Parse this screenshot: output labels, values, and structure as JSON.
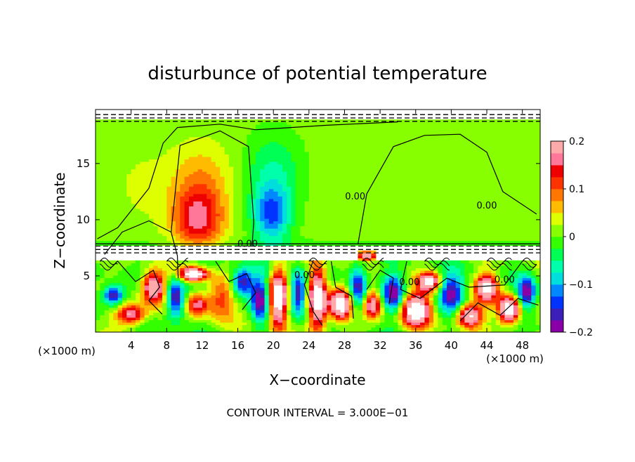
{
  "chart_data": {
    "type": "heatmap",
    "title": "disturbunce of potential temperature",
    "xlabel": "X−coordinate",
    "ylabel": "Z−coordinate",
    "x_unit": "(×1000 m)",
    "z_unit": "(×1000 m)",
    "xlim": [
      0,
      50
    ],
    "zlim": [
      0,
      19.8
    ],
    "x_ticks": [
      4,
      8,
      12,
      16,
      20,
      24,
      28,
      32,
      36,
      40,
      44,
      48
    ],
    "z_ticks": [
      5,
      10,
      15
    ],
    "colorbar": {
      "range": [
        -0.2,
        0.2
      ],
      "ticks": [
        -0.2,
        -0.1,
        0,
        0.1,
        0.2
      ],
      "tick_labels": [
        "−0.2",
        "−0.1",
        "0",
        "0.1",
        "0.2"
      ],
      "colors": [
        "#8a00a8",
        "#3b1fb8",
        "#0033ff",
        "#0088ff",
        "#00dddd",
        "#00ffaa",
        "#00ff55",
        "#33ff00",
        "#88ff00",
        "#ddff00",
        "#ffbb00",
        "#ff7700",
        "#ff3300",
        "#ee0000",
        "#ff7799",
        "#ffaaaa"
      ]
    },
    "contour_labels": [
      {
        "text": "0.00",
        "x": 17.1,
        "z": 7.6
      },
      {
        "text": "0.00",
        "x": 29.2,
        "z": 11.8
      },
      {
        "text": "0.00",
        "x": 44.0,
        "z": 11.0
      },
      {
        "text": "0.00",
        "x": 23.5,
        "z": 4.8
      },
      {
        "text": "0.00",
        "x": 35.3,
        "z": 4.2
      },
      {
        "text": "0.00",
        "x": 46.0,
        "z": 4.4
      }
    ],
    "contour_interval_label": "CONTOUR INTERVAL = 3.000E−01",
    "fields": {
      "upper_plumes": [
        {
          "x": 11.5,
          "z": 10.0,
          "amp": 0.14,
          "sx": 2.8,
          "sz": 2.6
        },
        {
          "x": 11.8,
          "z": 13.5,
          "amp": 0.06,
          "sx": 3.4,
          "sz": 3.2
        },
        {
          "x": 19.8,
          "z": 10.5,
          "amp": -0.14,
          "sx": 2.2,
          "sz": 2.6
        },
        {
          "x": 20.0,
          "z": 14.5,
          "amp": -0.06,
          "sx": 3.2,
          "sz": 3.4
        },
        {
          "x": 5.5,
          "z": 13.0,
          "amp": 0.02,
          "sx": 3.0,
          "sz": 3.0
        },
        {
          "x": 40.0,
          "z": 12.5,
          "amp": 0.012,
          "sx": 5.0,
          "sz": 3.0
        }
      ],
      "lower_blobs": [
        {
          "x": 2.0,
          "z": 3.3,
          "amp": -0.2,
          "sx": 1.2,
          "sz": 0.9
        },
        {
          "x": 4.0,
          "z": 1.6,
          "amp": 0.2,
          "sx": 1.6,
          "sz": 0.9
        },
        {
          "x": 6.5,
          "z": 4.0,
          "amp": 0.25,
          "sx": 1.3,
          "sz": 1.4
        },
        {
          "x": 9.0,
          "z": 3.0,
          "amp": -0.2,
          "sx": 1.0,
          "sz": 1.8
        },
        {
          "x": 11.0,
          "z": 5.2,
          "amp": 0.3,
          "sx": 1.5,
          "sz": 0.6
        },
        {
          "x": 11.5,
          "z": 2.5,
          "amp": 0.18,
          "sx": 1.2,
          "sz": 1.0
        },
        {
          "x": 14.0,
          "z": 3.0,
          "amp": 0.12,
          "sx": 1.5,
          "sz": 1.8
        },
        {
          "x": 16.5,
          "z": 4.5,
          "amp": -0.2,
          "sx": 1.2,
          "sz": 1.2
        },
        {
          "x": 18.5,
          "z": 3.0,
          "amp": -0.18,
          "sx": 1.0,
          "sz": 2.0
        },
        {
          "x": 20.5,
          "z": 3.0,
          "amp": 0.3,
          "sx": 1.0,
          "sz": 2.6
        },
        {
          "x": 22.8,
          "z": 3.5,
          "amp": -0.2,
          "sx": 0.9,
          "sz": 2.0
        },
        {
          "x": 25.0,
          "z": 3.0,
          "amp": 0.3,
          "sx": 1.0,
          "sz": 2.8
        },
        {
          "x": 27.5,
          "z": 2.5,
          "amp": 0.3,
          "sx": 1.2,
          "sz": 1.4
        },
        {
          "x": 29.5,
          "z": 4.0,
          "amp": -0.18,
          "sx": 1.0,
          "sz": 2.0
        },
        {
          "x": 31.2,
          "z": 2.5,
          "amp": 0.2,
          "sx": 1.0,
          "sz": 1.2
        },
        {
          "x": 33.5,
          "z": 3.5,
          "amp": -0.18,
          "sx": 1.2,
          "sz": 1.6
        },
        {
          "x": 36.0,
          "z": 2.0,
          "amp": 0.3,
          "sx": 1.6,
          "sz": 1.4
        },
        {
          "x": 37.5,
          "z": 4.5,
          "amp": 0.25,
          "sx": 1.2,
          "sz": 0.8
        },
        {
          "x": 40.0,
          "z": 3.5,
          "amp": -0.18,
          "sx": 1.4,
          "sz": 1.6
        },
        {
          "x": 42.0,
          "z": 1.5,
          "amp": 0.25,
          "sx": 1.4,
          "sz": 1.0
        },
        {
          "x": 44.0,
          "z": 4.0,
          "amp": 0.25,
          "sx": 1.2,
          "sz": 1.2
        },
        {
          "x": 46.5,
          "z": 2.0,
          "amp": 0.3,
          "sx": 1.2,
          "sz": 1.2
        },
        {
          "x": 48.5,
          "z": 3.5,
          "amp": -0.2,
          "sx": 1.0,
          "sz": 1.4
        },
        {
          "x": 30.5,
          "z": 6.8,
          "amp": 0.25,
          "sx": 1.0,
          "sz": 0.35
        }
      ]
    }
  }
}
